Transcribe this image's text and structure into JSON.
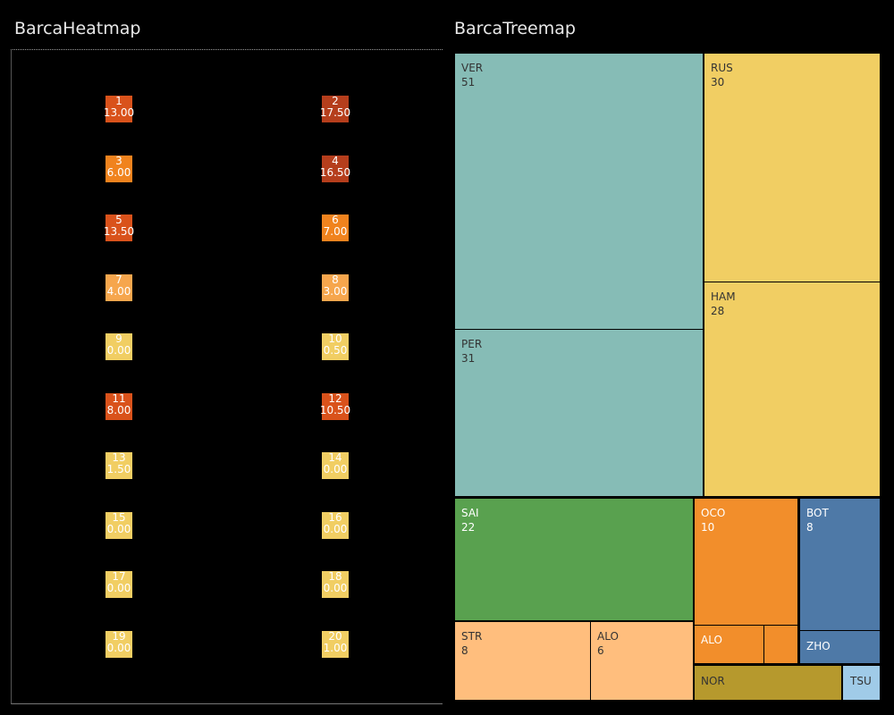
{
  "heatmap": {
    "title": "BarcaHeatmap",
    "colors": {
      "zero": "#f1ce63",
      "low": "#f6a64d",
      "mid": "#f0831e",
      "high": "#d9521b",
      "top": "#b53e1c"
    }
  },
  "treemap": {
    "title": "BarcaTreemap",
    "colors": {
      "teal": "#86bcb6",
      "yellow": "#f1ce63",
      "green": "#59a14f",
      "orange": "#f28e2b",
      "blue": "#4e79a7",
      "peach": "#ffbe7d",
      "olive": "#b6992d",
      "lightblue": "#a0cbe8"
    }
  },
  "chart_data": [
    {
      "type": "heatmap",
      "title": "BarcaHeatmap",
      "cells": [
        {
          "label": "1",
          "value": 13.0,
          "display": "13.00"
        },
        {
          "label": "2",
          "value": 17.5,
          "display": "17.50"
        },
        {
          "label": "3",
          "value": 6.0,
          "display": "6.00"
        },
        {
          "label": "4",
          "value": 16.5,
          "display": "16.50"
        },
        {
          "label": "5",
          "value": 13.5,
          "display": "13.50"
        },
        {
          "label": "6",
          "value": 7.0,
          "display": "7.00"
        },
        {
          "label": "7",
          "value": 4.0,
          "display": "4.00"
        },
        {
          "label": "8",
          "value": 3.0,
          "display": "3.00"
        },
        {
          "label": "9",
          "value": 0.0,
          "display": "0.00"
        },
        {
          "label": "10",
          "value": 0.5,
          "display": "0.50"
        },
        {
          "label": "11",
          "value": 8.0,
          "display": "8.00"
        },
        {
          "label": "12",
          "value": 10.5,
          "display": "10.50"
        },
        {
          "label": "13",
          "value": 1.5,
          "display": "1.50"
        },
        {
          "label": "14",
          "value": 0.0,
          "display": "0.00"
        },
        {
          "label": "15",
          "value": 0.0,
          "display": "0.00"
        },
        {
          "label": "16",
          "value": 0.0,
          "display": "0.00"
        },
        {
          "label": "17",
          "value": 0.0,
          "display": "0.00"
        },
        {
          "label": "18",
          "value": 0.0,
          "display": "0.00"
        },
        {
          "label": "19",
          "value": 0.0,
          "display": "0.00"
        },
        {
          "label": "20",
          "value": 1.0,
          "display": "1.00"
        }
      ]
    },
    {
      "type": "treemap",
      "title": "BarcaTreemap",
      "items": [
        {
          "name": "VER",
          "value": 51,
          "show_value": true,
          "color": "teal"
        },
        {
          "name": "PER",
          "value": 31,
          "show_value": true,
          "color": "teal"
        },
        {
          "name": "RUS",
          "value": 30,
          "show_value": true,
          "color": "yellow"
        },
        {
          "name": "HAM",
          "value": 28,
          "show_value": true,
          "color": "yellow"
        },
        {
          "name": "SAI",
          "value": 22,
          "show_value": true,
          "color": "green"
        },
        {
          "name": "OCO",
          "value": 10,
          "show_value": true,
          "color": "orange"
        },
        {
          "name": "ALO",
          "value": null,
          "show_value": false,
          "color": "orange"
        },
        {
          "name": "",
          "value": null,
          "show_value": false,
          "color": "orange"
        },
        {
          "name": "BOT",
          "value": 8,
          "show_value": true,
          "color": "blue"
        },
        {
          "name": "ZHO",
          "value": null,
          "show_value": false,
          "color": "blue"
        },
        {
          "name": "STR",
          "value": 8,
          "show_value": true,
          "color": "peach"
        },
        {
          "name": "ALO",
          "value": 6,
          "show_value": true,
          "color": "peach"
        },
        {
          "name": "NOR",
          "value": null,
          "show_value": false,
          "color": "olive"
        },
        {
          "name": "TSU",
          "value": null,
          "show_value": false,
          "color": "lightblue"
        }
      ]
    }
  ]
}
